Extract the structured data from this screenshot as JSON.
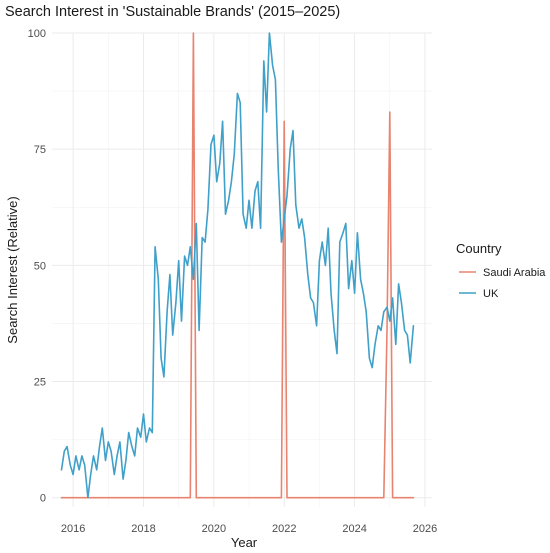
{
  "chart_data": {
    "type": "line",
    "title": "Search Interest in 'Sustainable Brands' (2015–2025)",
    "xlabel": "Year",
    "ylabel": "Search Interest (Relative)",
    "xlim": [
      2015.4,
      2026.2
    ],
    "ylim": [
      -2,
      100
    ],
    "xticks": [
      2016,
      2018,
      2020,
      2022,
      2024,
      2026
    ],
    "yticks": [
      0,
      25,
      50,
      75,
      100
    ],
    "grid": true,
    "legend": {
      "title": "Country",
      "placement": "right"
    },
    "series": [
      {
        "name": "Saudi Arabia",
        "color": "#e8836f",
        "x": [
          2015.67,
          2019.33,
          2019.42,
          2019.5,
          2021.92,
          2022.0,
          2022.08,
          2024.83,
          2024.92,
          2025.0,
          2025.08,
          2025.67
        ],
        "y": [
          0,
          0,
          100,
          0,
          0,
          81,
          0,
          0,
          36,
          83,
          0,
          0
        ]
      },
      {
        "name": "UK",
        "color": "#3fa0c9",
        "x": [
          2015.67,
          2015.75,
          2015.83,
          2015.92,
          2016.0,
          2016.08,
          2016.17,
          2016.25,
          2016.33,
          2016.42,
          2016.5,
          2016.58,
          2016.67,
          2016.75,
          2016.83,
          2016.92,
          2017.0,
          2017.08,
          2017.17,
          2017.25,
          2017.33,
          2017.42,
          2017.5,
          2017.58,
          2017.67,
          2017.75,
          2017.83,
          2017.92,
          2018.0,
          2018.08,
          2018.17,
          2018.25,
          2018.33,
          2018.42,
          2018.5,
          2018.58,
          2018.67,
          2018.75,
          2018.83,
          2018.92,
          2019.0,
          2019.08,
          2019.17,
          2019.25,
          2019.33,
          2019.42,
          2019.5,
          2019.58,
          2019.67,
          2019.75,
          2019.83,
          2019.92,
          2020.0,
          2020.08,
          2020.17,
          2020.25,
          2020.33,
          2020.42,
          2020.5,
          2020.58,
          2020.67,
          2020.75,
          2020.83,
          2020.92,
          2021.0,
          2021.08,
          2021.17,
          2021.25,
          2021.33,
          2021.42,
          2021.5,
          2021.58,
          2021.67,
          2021.75,
          2021.83,
          2021.92,
          2022.0,
          2022.08,
          2022.17,
          2022.25,
          2022.33,
          2022.42,
          2022.5,
          2022.58,
          2022.67,
          2022.75,
          2022.83,
          2022.92,
          2023.0,
          2023.08,
          2023.17,
          2023.25,
          2023.33,
          2023.42,
          2023.5,
          2023.58,
          2023.67,
          2023.75,
          2023.83,
          2023.92,
          2024.0,
          2024.08,
          2024.17,
          2024.25,
          2024.33,
          2024.42,
          2024.5,
          2024.58,
          2024.67,
          2024.75,
          2024.83,
          2024.92,
          2025.0,
          2025.08,
          2025.17,
          2025.25,
          2025.33,
          2025.42,
          2025.5,
          2025.58,
          2025.67
        ],
        "y": [
          6,
          10,
          11,
          7,
          5,
          9,
          6,
          9,
          7,
          0,
          5,
          9,
          6,
          11,
          15,
          8,
          12,
          10,
          5,
          9,
          12,
          4,
          8,
          14,
          11,
          9,
          15,
          13,
          18,
          12,
          15,
          14,
          54,
          47,
          30,
          26,
          40,
          48,
          35,
          42,
          51,
          38,
          52,
          50,
          54,
          47,
          59,
          36,
          56,
          55,
          62,
          76,
          78,
          68,
          72,
          81,
          61,
          64,
          68,
          74,
          87,
          85,
          61,
          58,
          64,
          58,
          66,
          68,
          58,
          94,
          83,
          100,
          93,
          90,
          71,
          55,
          60,
          65,
          75,
          79,
          63,
          58,
          60,
          56,
          48,
          43,
          42,
          37,
          51,
          55,
          50,
          58,
          44,
          36,
          31,
          55,
          57,
          59,
          45,
          51,
          44,
          57,
          47,
          44,
          40,
          30,
          28,
          33,
          37,
          36,
          40,
          41,
          38,
          43,
          33,
          46,
          42,
          36,
          35,
          29,
          37
        ]
      }
    ]
  }
}
